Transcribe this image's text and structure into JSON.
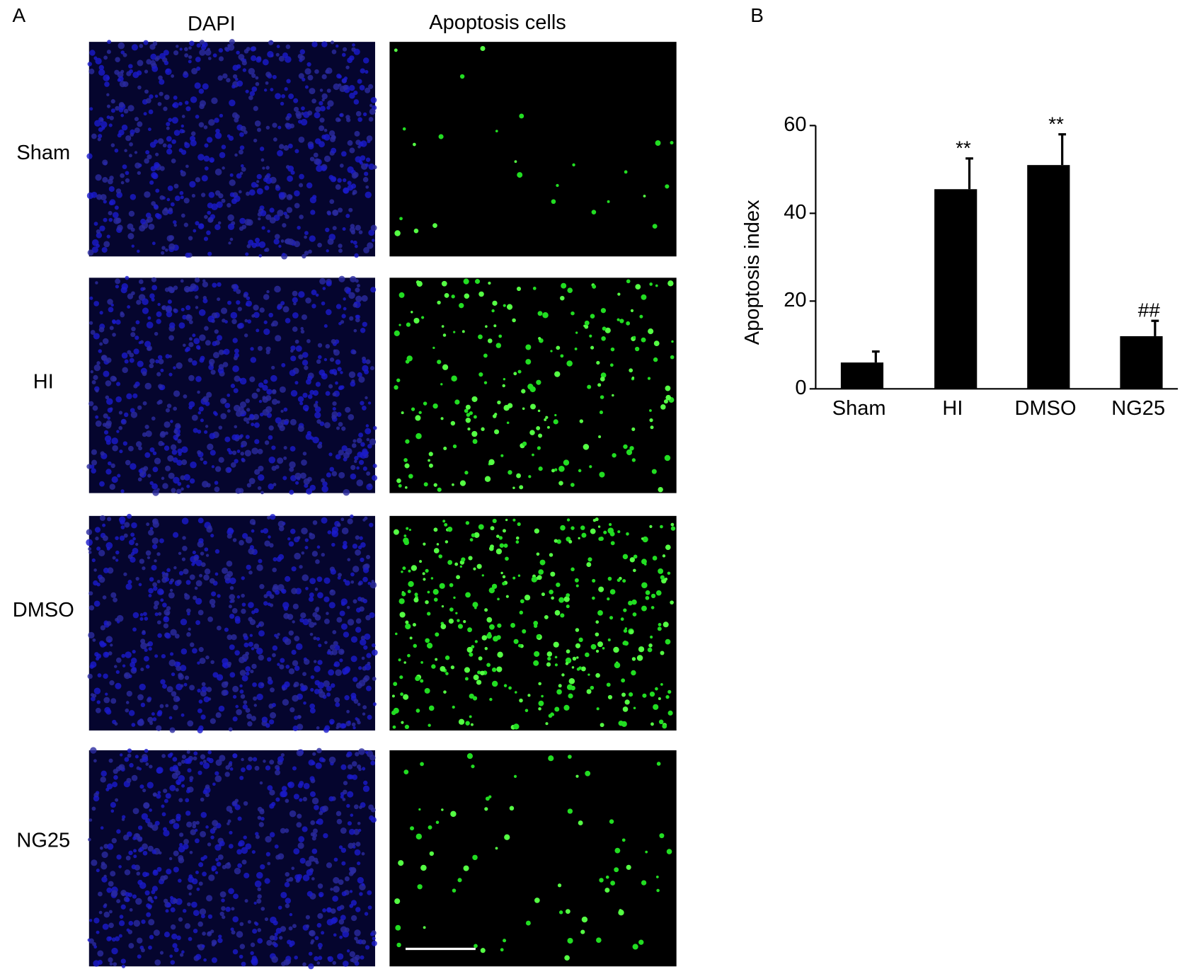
{
  "panel_a": {
    "label": "A",
    "columns": [
      "DAPI",
      "Apoptosis cells"
    ],
    "rows": [
      "Sham",
      "HI",
      "DMSO",
      "NG25"
    ]
  },
  "chart_data": {
    "type": "bar",
    "label": "B",
    "y_label": "Apoptosis index",
    "categories": [
      "Sham",
      "HI",
      "DMSO",
      "NG25"
    ],
    "values": [
      6,
      45.5,
      51,
      12
    ],
    "errors": [
      2.5,
      7,
      7,
      3.5
    ],
    "annotations": [
      null,
      "**",
      "**",
      "##"
    ],
    "color": "#000000",
    "ylim": [
      0,
      60
    ],
    "yticks": [
      0,
      20,
      40,
      60
    ]
  }
}
